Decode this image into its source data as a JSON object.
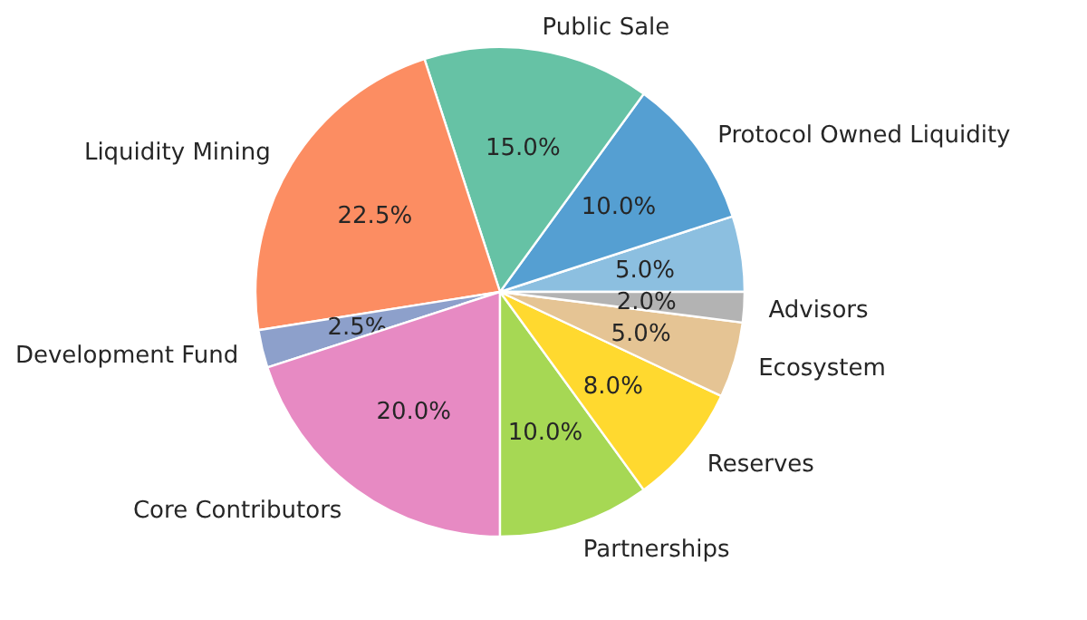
{
  "chart_data": {
    "type": "pie",
    "categories": [
      null,
      "Protocol Owned Liquidity",
      "Public Sale",
      "Liquidity Mining",
      "Development Fund",
      "Core Contributors",
      "Partnerships",
      "Reserves",
      "Ecosystem",
      "Advisors"
    ],
    "values": [
      5,
      10,
      15,
      22.5,
      2.5,
      20,
      10,
      8,
      5,
      2
    ],
    "value_labels": [
      "5.0%",
      "10.0%",
      "15.0%",
      "22.5%",
      "2.5%",
      "20.0%",
      "10.0%",
      "8.0%",
      "5.0%",
      "2.0%"
    ],
    "colors": [
      "#8cbfe0",
      "#559fd2",
      "#66c2a5",
      "#fc8d62",
      "#8da0cb",
      "#e78ac3",
      "#a6d854",
      "#ffd92f",
      "#e5c494",
      "#b3b3b3"
    ]
  }
}
